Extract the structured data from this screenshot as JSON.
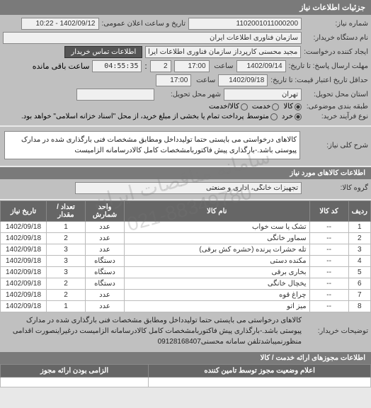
{
  "tab_title": "جزئیات اطلاعات نیاز",
  "watermark_line1": "سامانه مناقصات ایران",
  "watermark_line2": "021-88349780",
  "general": {
    "req_no_label": "شماره نیاز:",
    "req_no": "1102001011000200",
    "announce_label": "تاریخ و ساعت اعلان عمومی:",
    "announce_val": "1402/09/12 - 10:22",
    "buyer_device_label": "نام دستگاه خریدار:",
    "buyer_device": "سازمان فناوری اطلاعات ایران",
    "requester_label": "ایجاد کننده درخواست:",
    "requester": "مجید محسنی کارپرداز سازمان فناوری اطلاعات ایران",
    "contact_btn": "اطلاعات تماس خریدار",
    "deadline_label": "مهلت ارسال پاسخ: تا تاریخ:",
    "deadline_date": "1402/09/14",
    "deadline_time_label": "ساعت",
    "deadline_time": "17:00",
    "timer_sep": ":",
    "timer": "04:55:35",
    "timer_suffix": "ساعت باقی مانده",
    "days": "2",
    "validity_label": "حداقل تاریخ اعتبار قیمت: تا تاریخ:",
    "validity_date": "1402/09/18",
    "validity_time": "17:00",
    "delivery_state_label": "استان محل تحویل:",
    "delivery_state": "تهران",
    "delivery_city_label": "شهر محل تحویل:",
    "delivery_city": "",
    "budget_label": "طبقه بندی موضوعی:",
    "budget_opts": [
      "کالا",
      "خدمت",
      "کالا/خدمت"
    ],
    "budget_selected": 0,
    "process_label": "نوع فرآیند خرید:",
    "process_opts": [
      "خرد",
      "متوسط"
    ],
    "process_selected": 0,
    "process_note": "پرداخت تمام یا بخشی از مبلغ خرید، از محل \"اسناد خزانه اسلامی\" خواهد بود."
  },
  "desc": {
    "label": "شرح کلی نیاز:",
    "text": "کالاهای درخواستی می بایستی حتما تولیدداخل ومطابق مشخصات فنی بارگذاری شده در مدارک پیوستی باشد.-بارگذاری پیش فاکتوربامشخصات کامل کالادرسامانه الزامیست"
  },
  "goods_section": {
    "title": "اطلاعات کالاهای مورد نیاز",
    "group_label": "گروه کالا:",
    "group_val": "تجهیزات خانگی، اداری و صنعتی"
  },
  "table": {
    "headers": [
      "ردیف",
      "کد کالا",
      "نام کالا",
      "واحد شمارش",
      "تعداد / مقدار",
      "تاریخ نیاز"
    ],
    "rows": [
      [
        "1",
        "--",
        "تشک یا ست خواب",
        "عدد",
        "1",
        "1402/09/18"
      ],
      [
        "2",
        "--",
        "سماور خانگی",
        "عدد",
        "2",
        "1402/09/18"
      ],
      [
        "3",
        "--",
        "تله حشرات پرنده (حشره کش برقی)",
        "عدد",
        "3",
        "1402/09/18"
      ],
      [
        "4",
        "--",
        "مکنده دستی",
        "دستگاه",
        "3",
        "1402/09/18"
      ],
      [
        "5",
        "--",
        "بخاری برقی",
        "دستگاه",
        "3",
        "1402/09/18"
      ],
      [
        "6",
        "--",
        "یخچال خانگی",
        "دستگاه",
        "2",
        "1402/09/18"
      ],
      [
        "7",
        "--",
        "چراغ قوه",
        "عدد",
        "2",
        "1402/09/18"
      ],
      [
        "8",
        "--",
        "میز اتو",
        "عدد",
        "1",
        "1402/09/18"
      ]
    ]
  },
  "footer": {
    "label": "توضیحات خریدار:",
    "text": "کالاهای درخواستی می بایستی حتما تولیدداخل ومطابق مشخصات فنی بارگذاری شده در مدارک پیوستی باشد.-بارگذاری پیش فاکتوربامشخصات کامل کالادرسامانه الزامیست درغیراینصورت اقدامی منظورنمیباشدتلفن سامانه محسنی09128168407"
  },
  "licenses": {
    "title": "اطلاعات مجوزهای ارائه خدمت / کالا",
    "status_label": "اعلام وضعیت مجوز توسط تامین کننده",
    "mandatory_label": "الزامی بودن ارائه مجوز"
  }
}
